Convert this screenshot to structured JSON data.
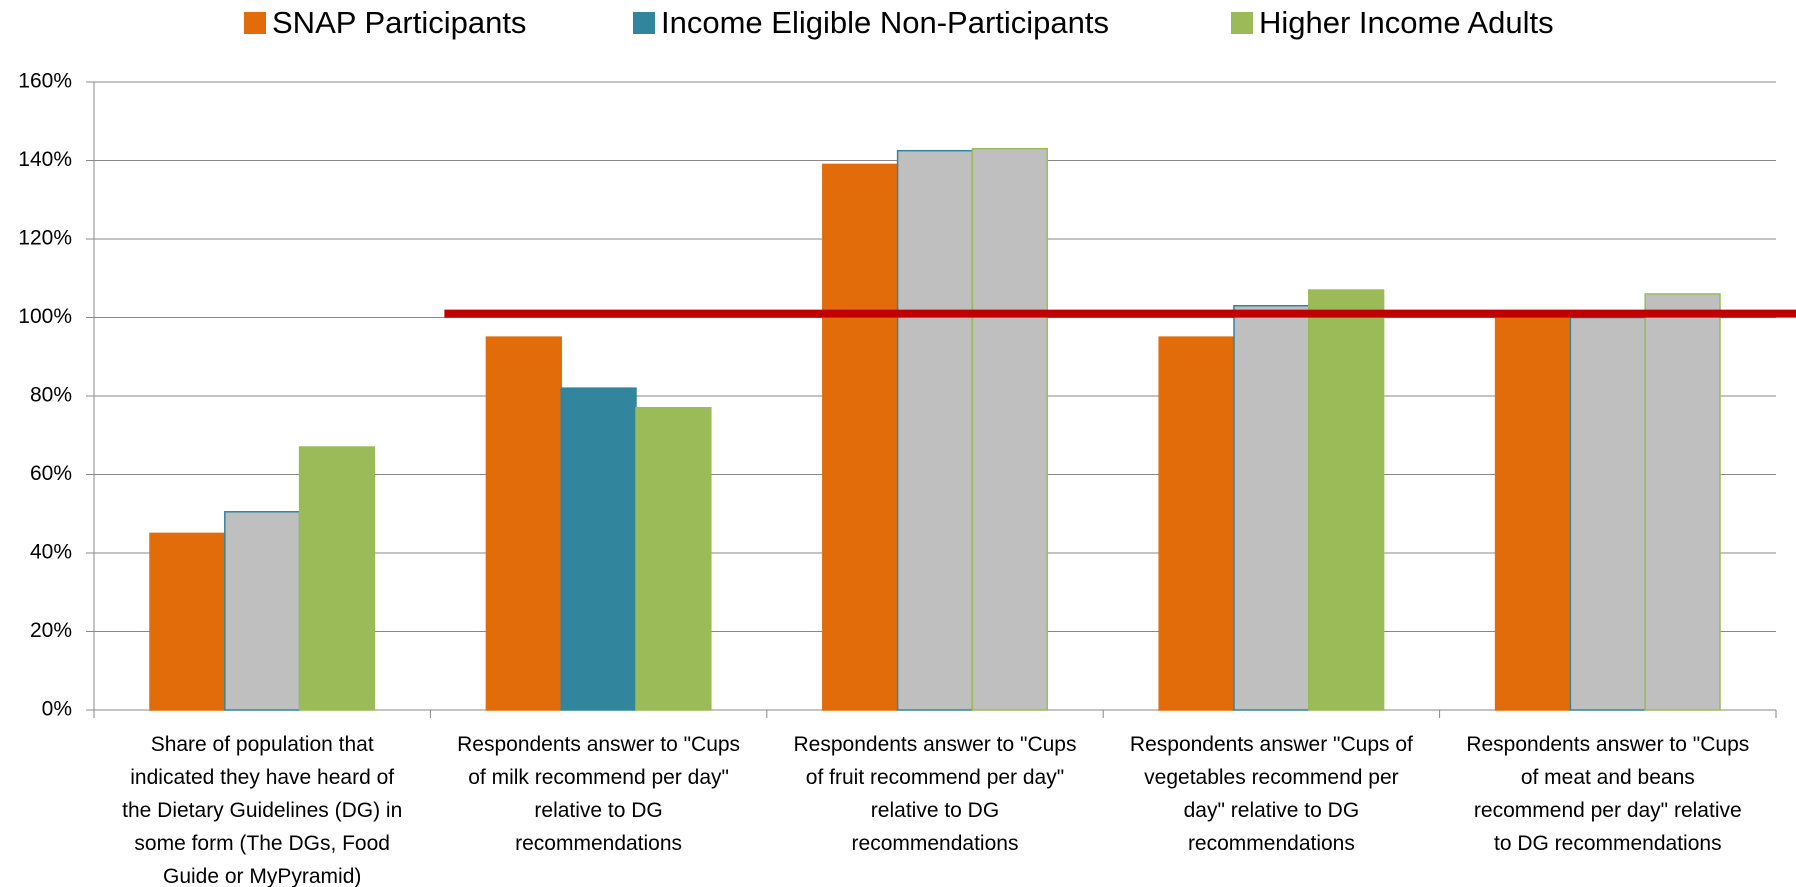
{
  "chart_data": {
    "type": "bar",
    "categories": [
      [
        "Share of population that",
        "indicated they have heard of",
        "the Dietary Guidelines (DG) in",
        "some form (The DGs, Food",
        "Guide or MyPyramid)"
      ],
      [
        "Respondents answer to \"Cups",
        "of milk recommend per day\"",
        "relative to DG",
        "recommendations"
      ],
      [
        "Respondents answer to \"Cups",
        "of fruit recommend per day\"",
        "relative to DG",
        "recommendations"
      ],
      [
        "Respondents answer \"Cups of",
        "vegetables recommend per",
        "day\" relative to DG",
        "recommendations"
      ],
      [
        "Respondents answer to \"Cups",
        "of meat and beans",
        "recommend per day\" relative",
        "to DG recommendations"
      ]
    ],
    "series": [
      {
        "name": "SNAP Participants",
        "color": "#e36c0a",
        "values": [
          45,
          95,
          139,
          95,
          100
        ],
        "colors": [
          "#e36c0a",
          "#e36c0a",
          "#e36c0a",
          "#e36c0a",
          "#e36c0a"
        ]
      },
      {
        "name": "Income Eligible Non-Participants",
        "color": "#31859c",
        "values": [
          50.5,
          82,
          142.5,
          103,
          100
        ],
        "colors": [
          "#bfbfbf",
          "#31859c",
          "#bfbfbf",
          "#bfbfbf",
          "#bfbfbf"
        ]
      },
      {
        "name": "Higher Income Adults",
        "color": "#9bbb59",
        "values": [
          67,
          77,
          143,
          107,
          106
        ],
        "colors": [
          "#9bbb59",
          "#9bbb59",
          "#bfbfbf",
          "#9bbb59",
          "#bfbfbf"
        ]
      }
    ],
    "ylim": [
      0,
      160
    ],
    "yticks": [
      {
        "value": 0,
        "label": "0%"
      },
      {
        "value": 20,
        "label": "20%"
      },
      {
        "value": 40,
        "label": "40%"
      },
      {
        "value": 60,
        "label": "60%"
      },
      {
        "value": 80,
        "label": "80%"
      },
      {
        "value": 100,
        "label": "100%"
      },
      {
        "value": 120,
        "label": "120%"
      },
      {
        "value": 140,
        "label": "140%"
      },
      {
        "value": 160,
        "label": "160%"
      }
    ],
    "grid": true,
    "legend": "top",
    "reference_line": {
      "value": 101,
      "color": "#c00000"
    }
  }
}
